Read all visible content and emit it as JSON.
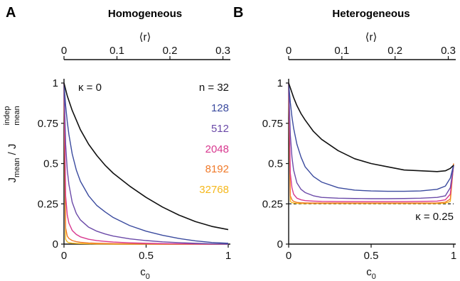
{
  "panels": [
    {
      "letter": "A",
      "title": "Homogeneous",
      "top_axis_label": "⟨r⟩",
      "top_ticks": [
        "0",
        "0.1",
        "0.2",
        "0.3"
      ],
      "top_tick_values": [
        0,
        0.1,
        0.2,
        0.3
      ],
      "x_ticks": [
        "0",
        "0.5",
        "1"
      ],
      "x_tick_values": [
        0,
        0.5,
        1
      ],
      "y_ticks": [
        "0",
        "0.25",
        "0.5",
        "0.75",
        "1"
      ],
      "y_tick_values": [
        0,
        0.25,
        0.5,
        0.75,
        1
      ],
      "kappa_label": "κ = 0",
      "legend_prefix": "n = ",
      "legend": [
        "32",
        "128",
        "512",
        "2048",
        "8192",
        "32768"
      ]
    },
    {
      "letter": "B",
      "title": "Heterogeneous",
      "top_axis_label": "⟨r⟩",
      "top_ticks": [
        "0",
        "0.1",
        "0.2",
        "0.3"
      ],
      "top_tick_values": [
        0,
        0.1,
        0.2,
        0.3
      ],
      "x_ticks": [
        "0",
        "0.5",
        "1"
      ],
      "x_tick_values": [
        0,
        0.5,
        1
      ],
      "y_ticks": [
        "0",
        "0.25",
        "0.5",
        "0.75",
        "1"
      ],
      "y_tick_values": [
        0,
        0.25,
        0.5,
        0.75,
        1
      ],
      "kappa_label": "κ = 0.25"
    }
  ],
  "ylabel": {
    "base": "J",
    "sub": "mean",
    "sep": " / ",
    "sup": "indep",
    "sub2": "mean"
  },
  "xlabel": {
    "base": "c",
    "sub": "0"
  },
  "colors": {
    "n32": "#111111",
    "n128": "#3a4a9e",
    "n512": "#6b4aa8",
    "n2048": "#d8388f",
    "n8192": "#f07a2a",
    "n32768": "#f5b81c",
    "axis": "#111111"
  },
  "chart_data": [
    {
      "type": "line",
      "title": "Homogeneous",
      "xlabel": "c0",
      "ylabel": "Jmean / Jmean indep",
      "xlim": [
        0,
        1
      ],
      "ylim": [
        0,
        1
      ],
      "top_axis": {
        "label": "⟨r⟩",
        "lim": [
          0,
          0.31
        ],
        "ticks": [
          0,
          0.1,
          0.2,
          0.3
        ]
      },
      "annotation": "κ = 0",
      "x": [
        0,
        0.01,
        0.02,
        0.03,
        0.05,
        0.075,
        0.1,
        0.15,
        0.2,
        0.25,
        0.3,
        0.4,
        0.5,
        0.6,
        0.7,
        0.8,
        0.9,
        1.0
      ],
      "series": [
        {
          "name": "n = 32",
          "color": "#111111",
          "values": [
            1.0,
            0.96,
            0.92,
            0.89,
            0.83,
            0.77,
            0.71,
            0.62,
            0.55,
            0.49,
            0.44,
            0.36,
            0.29,
            0.23,
            0.18,
            0.14,
            0.11,
            0.09
          ]
        },
        {
          "name": "128",
          "color": "#3a4a9e",
          "values": [
            1.0,
            0.86,
            0.76,
            0.68,
            0.56,
            0.46,
            0.39,
            0.3,
            0.24,
            0.2,
            0.165,
            0.115,
            0.08,
            0.055,
            0.035,
            0.02,
            0.01,
            0.005
          ]
        },
        {
          "name": "512",
          "color": "#6b4aa8",
          "values": [
            1.0,
            0.62,
            0.46,
            0.37,
            0.26,
            0.19,
            0.15,
            0.105,
            0.08,
            0.063,
            0.05,
            0.033,
            0.022,
            0.014,
            0.009,
            0.005,
            0.002,
            0.0
          ]
        },
        {
          "name": "2048",
          "color": "#d8388f",
          "values": [
            1.0,
            0.3,
            0.18,
            0.13,
            0.085,
            0.06,
            0.045,
            0.03,
            0.022,
            0.017,
            0.013,
            0.008,
            0.005,
            0.003,
            0.002,
            0.001,
            0.0,
            0.0
          ]
        },
        {
          "name": "8192",
          "color": "#f07a2a",
          "values": [
            1.0,
            0.1,
            0.05,
            0.035,
            0.022,
            0.015,
            0.011,
            0.007,
            0.005,
            0.004,
            0.003,
            0.002,
            0.001,
            0.0,
            0.0,
            0.0,
            0.0,
            0.0
          ]
        },
        {
          "name": "32768",
          "color": "#f5b81c",
          "values": [
            1.0,
            0.03,
            0.014,
            0.009,
            0.006,
            0.004,
            0.003,
            0.002,
            0.001,
            0.001,
            0.0,
            0.0,
            0.0,
            0.0,
            0.0,
            0.0,
            0.0,
            0.0
          ]
        }
      ]
    },
    {
      "type": "line",
      "title": "Heterogeneous",
      "xlabel": "c0",
      "ylabel": "Jmean / Jmean indep",
      "xlim": [
        0,
        1
      ],
      "ylim": [
        0,
        1
      ],
      "top_axis": {
        "label": "⟨r⟩",
        "lim": [
          0,
          0.31
        ],
        "ticks": [
          0,
          0.1,
          0.2,
          0.3
        ]
      },
      "annotation": "κ = 0.25",
      "reference_line": {
        "y": 0.25,
        "style": "dashed"
      },
      "x": [
        0,
        0.01,
        0.02,
        0.03,
        0.05,
        0.075,
        0.1,
        0.15,
        0.2,
        0.3,
        0.4,
        0.5,
        0.6,
        0.7,
        0.8,
        0.9,
        0.95,
        0.98,
        1.0
      ],
      "series": [
        {
          "name": "n = 32",
          "color": "#111111",
          "values": [
            1.0,
            0.97,
            0.94,
            0.91,
            0.86,
            0.81,
            0.77,
            0.7,
            0.65,
            0.58,
            0.53,
            0.5,
            0.48,
            0.46,
            0.455,
            0.45,
            0.455,
            0.47,
            0.49
          ]
        },
        {
          "name": "128",
          "color": "#3a4a9e",
          "values": [
            1.0,
            0.88,
            0.79,
            0.72,
            0.62,
            0.54,
            0.48,
            0.42,
            0.385,
            0.35,
            0.335,
            0.33,
            0.328,
            0.328,
            0.33,
            0.34,
            0.36,
            0.41,
            0.49
          ]
        },
        {
          "name": "512",
          "color": "#6b4aa8",
          "values": [
            1.0,
            0.68,
            0.54,
            0.46,
            0.38,
            0.34,
            0.32,
            0.3,
            0.29,
            0.285,
            0.283,
            0.282,
            0.282,
            0.283,
            0.285,
            0.29,
            0.3,
            0.35,
            0.49
          ]
        },
        {
          "name": "2048",
          "color": "#d8388f",
          "values": [
            1.0,
            0.44,
            0.35,
            0.31,
            0.285,
            0.275,
            0.27,
            0.267,
            0.265,
            0.264,
            0.264,
            0.264,
            0.264,
            0.264,
            0.265,
            0.267,
            0.275,
            0.31,
            0.49
          ]
        },
        {
          "name": "8192",
          "color": "#f07a2a",
          "values": [
            1.0,
            0.3,
            0.275,
            0.265,
            0.259,
            0.257,
            0.256,
            0.255,
            0.255,
            0.255,
            0.255,
            0.255,
            0.255,
            0.255,
            0.255,
            0.256,
            0.26,
            0.28,
            0.5
          ]
        },
        {
          "name": "32768",
          "color": "#f5b81c",
          "values": [
            1.0,
            0.265,
            0.258,
            0.255,
            0.253,
            0.252,
            0.252,
            0.252,
            0.252,
            0.252,
            0.252,
            0.252,
            0.252,
            0.252,
            0.252,
            0.252,
            0.254,
            0.265,
            0.5
          ]
        }
      ]
    }
  ]
}
